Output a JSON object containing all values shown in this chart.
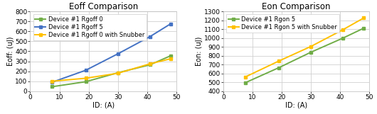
{
  "eoff": {
    "title": "Eoff Comparison",
    "xlabel": "ID: (A)",
    "ylabel": "Eoff: (uJ)",
    "xlim": [
      0,
      50
    ],
    "ylim": [
      0,
      800
    ],
    "yticks": [
      0,
      100,
      200,
      300,
      400,
      500,
      600,
      700,
      800
    ],
    "xticks": [
      0,
      10,
      20,
      30,
      40,
      50
    ],
    "series": [
      {
        "label": "Device #1 Rgoff 0",
        "color": "#70ad47",
        "marker": "s",
        "x": [
          7.5,
          19,
          30,
          41,
          48
        ],
        "y": [
          45,
          95,
          185,
          265,
          355
        ]
      },
      {
        "label": "Device #1 Rgoff 5",
        "color": "#4472c4",
        "marker": "s",
        "x": [
          7.5,
          19,
          30,
          41,
          48
        ],
        "y": [
          90,
          210,
          375,
          548,
          675
        ]
      },
      {
        "label": "Device #1 Rgoff 0 with Snubber",
        "color": "#ffc000",
        "marker": "s",
        "x": [
          7.5,
          19,
          30,
          41,
          48
        ],
        "y": [
          100,
          130,
          180,
          275,
          325
        ]
      }
    ]
  },
  "eon": {
    "title": "Eon Comparison",
    "xlabel": "ID: (A)",
    "ylabel": "Eon: (uJ)",
    "xlim": [
      0,
      50
    ],
    "ylim": [
      400,
      1300
    ],
    "yticks": [
      400,
      500,
      600,
      700,
      800,
      900,
      1000,
      1100,
      1200,
      1300
    ],
    "xticks": [
      0,
      10,
      20,
      30,
      40,
      50
    ],
    "series": [
      {
        "label": "Device #1 Rgon 5",
        "color": "#70ad47",
        "marker": "s",
        "x": [
          7.5,
          19,
          30,
          41,
          48
        ],
        "y": [
          495,
          665,
          840,
          1000,
          1110
        ]
      },
      {
        "label": "Device #1 Rgon 5 with Snubber",
        "color": "#ffc000",
        "marker": "s",
        "x": [
          7.5,
          19,
          30,
          41,
          48
        ],
        "y": [
          560,
          740,
          905,
          1095,
          1225
        ]
      }
    ]
  },
  "figure_bg": "#ffffff",
  "plot_bg": "#ffffff",
  "grid_color": "#d0d0d0",
  "title_fontsize": 8.5,
  "label_fontsize": 7,
  "tick_fontsize": 6.5,
  "legend_fontsize": 6,
  "line_width": 1.4,
  "marker_size": 3.5
}
